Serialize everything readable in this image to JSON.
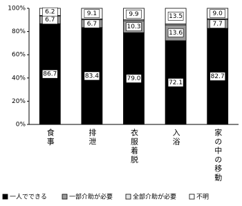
{
  "chart_data": {
    "type": "stacked_bar",
    "categories": [
      "食事",
      "排泄",
      "衣服着脱",
      "入浴",
      "家の中の移動"
    ],
    "series": [
      {
        "name": "一人でできる",
        "color": "#000000",
        "values": [
          86.7,
          83.4,
          79.0,
          72.1,
          82.7
        ],
        "value_labels": [
          "86.7",
          "83.4",
          "79.0",
          "72.1",
          "82.7"
        ]
      },
      {
        "name": "一部介助が必要",
        "color": "#9a9a9a",
        "values": [
          6.7,
          6.7,
          10.3,
          13.6,
          7.7
        ],
        "value_labels": [
          "6.7",
          "6.7",
          "10.3",
          "13.6",
          "7.7"
        ]
      },
      {
        "name": "全部介助が必要",
        "color": "#e4e4e4",
        "values": [
          0.4,
          0.8,
          0.8,
          0.8,
          0.6
        ],
        "value_labels": [
          null,
          null,
          null,
          null,
          null
        ]
      },
      {
        "name": "不明",
        "color": "#ffffff",
        "values": [
          6.2,
          9.1,
          9.9,
          13.5,
          9.0
        ],
        "value_labels": [
          "6.2",
          "9.1",
          "9.9",
          "13.5",
          "9.0"
        ]
      }
    ],
    "ylim": [
      0,
      100
    ],
    "yticks": [
      {
        "value": 0,
        "label": "0%"
      },
      {
        "value": 20,
        "label": "20%"
      },
      {
        "value": 40,
        "label": "40%"
      },
      {
        "value": 60,
        "label": "60%"
      },
      {
        "value": 80,
        "label": "80%"
      },
      {
        "value": 100,
        "label": "100%"
      }
    ]
  }
}
